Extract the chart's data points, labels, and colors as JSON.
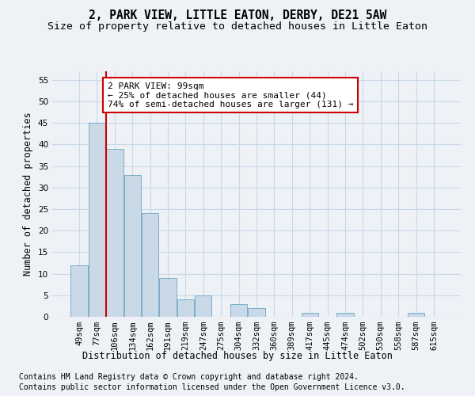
{
  "title": "2, PARK VIEW, LITTLE EATON, DERBY, DE21 5AW",
  "subtitle": "Size of property relative to detached houses in Little Eaton",
  "xlabel": "Distribution of detached houses by size in Little Eaton",
  "ylabel": "Number of detached properties",
  "categories": [
    "49sqm",
    "77sqm",
    "106sqm",
    "134sqm",
    "162sqm",
    "191sqm",
    "219sqm",
    "247sqm",
    "275sqm",
    "304sqm",
    "332sqm",
    "360sqm",
    "389sqm",
    "417sqm",
    "445sqm",
    "474sqm",
    "502sqm",
    "530sqm",
    "558sqm",
    "587sqm",
    "615sqm"
  ],
  "values": [
    12,
    45,
    39,
    33,
    24,
    9,
    4,
    5,
    0,
    3,
    2,
    0,
    0,
    1,
    0,
    1,
    0,
    0,
    0,
    1,
    0
  ],
  "bar_color": "#c9d9e8",
  "bar_edge_color": "#7aaec8",
  "grid_color": "#c8d8e8",
  "vline_color": "#cc0000",
  "annotation_text": "2 PARK VIEW: 99sqm\n← 25% of detached houses are smaller (44)\n74% of semi-detached houses are larger (131) →",
  "annotation_box_color": "white",
  "annotation_box_edge_color": "#cc0000",
  "ylim": [
    0,
    57
  ],
  "yticks": [
    0,
    5,
    10,
    15,
    20,
    25,
    30,
    35,
    40,
    45,
    50,
    55
  ],
  "footnote1": "Contains HM Land Registry data © Crown copyright and database right 2024.",
  "footnote2": "Contains public sector information licensed under the Open Government Licence v3.0.",
  "title_fontsize": 10.5,
  "subtitle_fontsize": 9.5,
  "xlabel_fontsize": 8.5,
  "ylabel_fontsize": 8.5,
  "tick_fontsize": 7.5,
  "annotation_fontsize": 8,
  "footnote_fontsize": 7,
  "background_color": "#eef2f7"
}
